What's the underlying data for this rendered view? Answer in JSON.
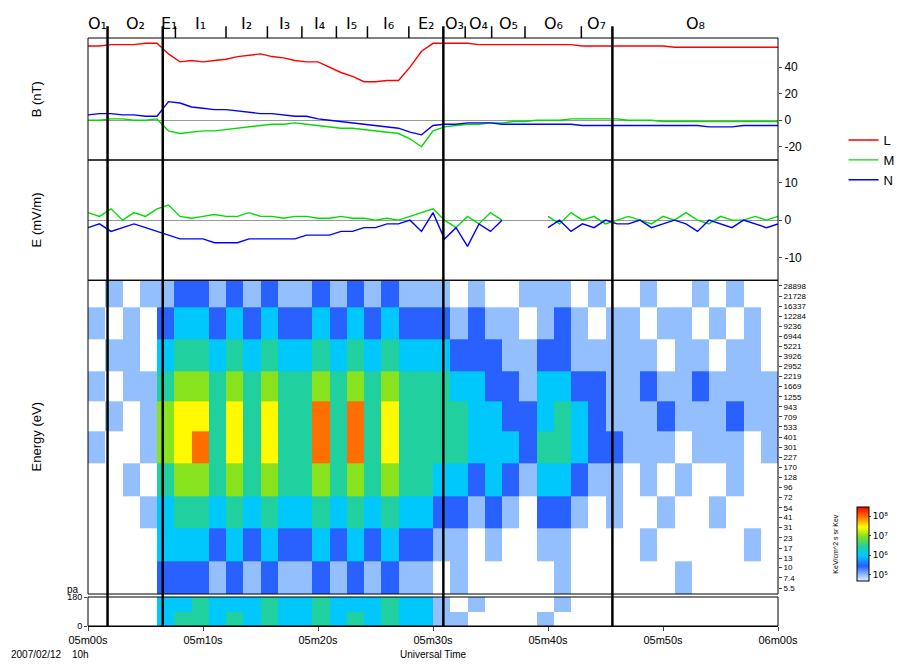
{
  "chart_data": [
    {
      "type": "line",
      "y_label": "B (nT)",
      "ylim": [
        -30,
        62
      ],
      "yticks": [
        -20,
        0,
        20,
        40
      ],
      "legend": "right",
      "series": [
        {
          "name": "L",
          "color": "#ff0000",
          "values": [
            56,
            56,
            57,
            57,
            57,
            58,
            58,
            50,
            44,
            45,
            44,
            45,
            46,
            48,
            49,
            50,
            48,
            47,
            45,
            44,
            44,
            40,
            36,
            33,
            29,
            29,
            30,
            30,
            40,
            52,
            58,
            58,
            58,
            58,
            57,
            57,
            57,
            57,
            57,
            57,
            57,
            57,
            57,
            56,
            56,
            56,
            56,
            56,
            56,
            56,
            56,
            55,
            55,
            55,
            55,
            55,
            55,
            55,
            55,
            55,
            55
          ]
        },
        {
          "name": "M",
          "color": "#00dd00",
          "values": [
            0,
            0,
            1,
            1,
            0,
            0,
            1,
            -8,
            -10,
            -9,
            -8,
            -8,
            -7,
            -6,
            -5,
            -4,
            -3,
            -3,
            -2,
            -3,
            -4,
            -5,
            -6,
            -6,
            -7,
            -8,
            -9,
            -10,
            -14,
            -20,
            -8,
            -5,
            -4,
            -3,
            -3,
            -2,
            -2,
            -1,
            -1,
            0,
            0,
            0,
            1,
            1,
            1,
            1,
            1,
            0,
            0,
            0,
            -1,
            -1,
            -1,
            -1,
            -1,
            -1,
            -1,
            -1,
            -1,
            -1,
            -1
          ]
        },
        {
          "name": "N",
          "color": "#0000ff",
          "values": [
            4,
            5,
            5,
            4,
            4,
            3,
            3,
            14,
            13,
            10,
            9,
            8,
            8,
            7,
            6,
            5,
            5,
            4,
            3,
            3,
            1,
            0,
            -1,
            -2,
            -3,
            -4,
            -5,
            -6,
            -9,
            -11,
            -4,
            -3,
            -3,
            -2,
            -2,
            -2,
            -3,
            -3,
            -3,
            -3,
            -3,
            -3,
            -3,
            -4,
            -4,
            -4,
            -4,
            -4,
            -4,
            -4,
            -4,
            -4,
            -4,
            -4,
            -5,
            -5,
            -5,
            -4,
            -4,
            -4,
            -4
          ]
        }
      ]
    },
    {
      "type": "line",
      "y_label": "E (mV/m)",
      "ylim": [
        -16,
        16
      ],
      "yticks": [
        -10,
        0,
        10
      ],
      "series": [
        {
          "name": "M",
          "color": "#00dd00",
          "values": [
            2,
            1,
            3,
            0,
            2,
            1,
            3,
            4,
            1,
            0.5,
            1,
            1.5,
            1,
            1,
            2,
            1,
            1,
            0.5,
            1,
            1,
            0.5,
            0.5,
            1,
            0.5,
            0.5,
            0,
            0.5,
            0,
            1,
            2,
            3,
            0,
            -2,
            1,
            -1,
            2,
            0,
            null,
            null,
            null,
            1,
            -1,
            2,
            0,
            1,
            -1,
            0,
            1,
            0,
            -1,
            1,
            0,
            2,
            0,
            -1,
            1,
            0,
            0,
            1,
            0,
            1
          ]
        },
        {
          "name": "N",
          "color": "#0000ff",
          "values": [
            -2,
            -1,
            -3,
            -2,
            -1,
            -2,
            -3,
            -4,
            -5,
            -5,
            -5,
            -6,
            -6,
            -6,
            -5,
            -5,
            -5,
            -5,
            -5,
            -4,
            -4,
            -4,
            -3,
            -3,
            -2,
            -2,
            -1,
            -1,
            0,
            -3,
            2,
            -5,
            -2,
            -7,
            -1,
            -3,
            0,
            null,
            null,
            null,
            -2,
            0,
            -3,
            -1,
            -2,
            0,
            -1,
            -1,
            0,
            -2,
            -1,
            0,
            -1,
            -3,
            0,
            -1,
            -2,
            0,
            -1,
            -2,
            -1
          ]
        }
      ]
    },
    {
      "type": "heatmap",
      "y_label": "Energy (eV)",
      "log": "y",
      "ylim": [
        4.7,
        34000
      ],
      "yticks": [
        5.5,
        7.4,
        10,
        13,
        17,
        23,
        31,
        41,
        54,
        72,
        96,
        128,
        170,
        227,
        301,
        401,
        533,
        709,
        943,
        1255,
        1669,
        2219,
        2952,
        3926,
        5221,
        6944,
        9236,
        12284,
        16337,
        21728,
        28898
      ],
      "y_edges": [
        4.7,
        12,
        30,
        75,
        190,
        470,
        1100,
        2600,
        6400,
        16000,
        34000
      ],
      "cells": [
        [
          null,
          null,
          null,
          null,
          300000.0,
          300000.0,
          300000.0,
          100000.0,
          300000.0,
          100000.0,
          300000.0,
          100000.0,
          100000.0,
          300000.0,
          100000.0,
          300000.0,
          100000.0,
          300000.0,
          100000.0,
          100000.0,
          null,
          100000.0,
          null,
          null,
          null,
          null,
          null,
          100000.0,
          null,
          null,
          null,
          null,
          null,
          null,
          100000.0,
          null,
          null,
          null,
          null,
          null
        ],
        [
          null,
          null,
          null,
          null,
          1000000.0,
          1000000.0,
          1000000.0,
          300000.0,
          1000000.0,
          300000.0,
          1000000.0,
          300000.0,
          300000.0,
          1000000.0,
          300000.0,
          1000000.0,
          300000.0,
          1000000.0,
          300000.0,
          300000.0,
          100000.0,
          100000.0,
          null,
          100000.0,
          null,
          null,
          100000.0,
          100000.0,
          null,
          null,
          null,
          null,
          100000.0,
          null,
          null,
          null,
          null,
          null,
          100000.0,
          null
        ],
        [
          null,
          null,
          null,
          100000.0,
          1000000.0,
          3000000.0,
          3000000.0,
          1000000.0,
          3000000.0,
          1000000.0,
          3000000.0,
          1000000.0,
          1000000.0,
          3000000.0,
          1000000.0,
          3000000.0,
          1000000.0,
          3000000.0,
          1000000.0,
          1000000.0,
          300000.0,
          300000.0,
          100000.0,
          300000.0,
          100000.0,
          null,
          300000.0,
          300000.0,
          100000.0,
          null,
          100000.0,
          null,
          null,
          100000.0,
          null,
          null,
          100000.0,
          null,
          null,
          null
        ],
        [
          null,
          null,
          100000.0,
          null,
          3000000.0,
          10000000.0,
          10000000.0,
          3000000.0,
          10000000.0,
          3000000.0,
          10000000.0,
          3000000.0,
          3000000.0,
          10000000.0,
          3000000.0,
          10000000.0,
          3000000.0,
          10000000.0,
          3000000.0,
          3000000.0,
          1000000.0,
          1000000.0,
          300000.0,
          1000000.0,
          300000.0,
          100000.0,
          1000000.0,
          1000000.0,
          300000.0,
          100000.0,
          100000.0,
          null,
          100000.0,
          null,
          100000.0,
          null,
          null,
          100000.0,
          null,
          null
        ],
        [
          100000.0,
          null,
          null,
          100000.0,
          10000000.0,
          30000000.0,
          100000000.0,
          3000000.0,
          30000000.0,
          3000000.0,
          30000000.0,
          3000000.0,
          3000000.0,
          100000000.0,
          3000000.0,
          100000000.0,
          3000000.0,
          30000000.0,
          3000000.0,
          3000000.0,
          3000000.0,
          3000000.0,
          1000000.0,
          1000000.0,
          1000000.0,
          300000.0,
          3000000.0,
          3000000.0,
          1000000.0,
          300000.0,
          300000.0,
          100000.0,
          100000.0,
          100000.0,
          null,
          100000.0,
          100000.0,
          100000.0,
          null,
          100000.0
        ],
        [
          null,
          100000.0,
          null,
          100000.0,
          10000000.0,
          30000000.0,
          30000000.0,
          3000000.0,
          30000000.0,
          3000000.0,
          30000000.0,
          3000000.0,
          3000000.0,
          100000000.0,
          3000000.0,
          100000000.0,
          3000000.0,
          30000000.0,
          3000000.0,
          3000000.0,
          3000000.0,
          3000000.0,
          1000000.0,
          1000000.0,
          300000.0,
          300000.0,
          1000000.0,
          3000000.0,
          1000000.0,
          300000.0,
          100000.0,
          100000.0,
          100000.0,
          300000.0,
          100000.0,
          100000.0,
          100000.0,
          300000.0,
          100000.0,
          100000.0
        ],
        [
          100000.0,
          null,
          100000.0,
          100000.0,
          3000000.0,
          10000000.0,
          10000000.0,
          3000000.0,
          10000000.0,
          3000000.0,
          10000000.0,
          3000000.0,
          3000000.0,
          10000000.0,
          3000000.0,
          10000000.0,
          3000000.0,
          10000000.0,
          3000000.0,
          3000000.0,
          3000000.0,
          1000000.0,
          1000000.0,
          300000.0,
          300000.0,
          100000.0,
          1000000.0,
          1000000.0,
          300000.0,
          300000.0,
          100000.0,
          100000.0,
          300000.0,
          100000.0,
          100000.0,
          300000.0,
          100000.0,
          100000.0,
          100000.0,
          100000.0
        ],
        [
          null,
          100000.0,
          100000.0,
          null,
          1000000.0,
          3000000.0,
          3000000.0,
          1000000.0,
          3000000.0,
          1000000.0,
          3000000.0,
          1000000.0,
          1000000.0,
          3000000.0,
          1000000.0,
          3000000.0,
          1000000.0,
          3000000.0,
          1000000.0,
          1000000.0,
          1000000.0,
          300000.0,
          300000.0,
          300000.0,
          100000.0,
          100000.0,
          300000.0,
          300000.0,
          100000.0,
          100000.0,
          100000.0,
          100000.0,
          100000.0,
          null,
          100000.0,
          100000.0,
          null,
          100000.0,
          100000.0,
          null
        ],
        [
          100000.0,
          null,
          100000.0,
          null,
          300000.0,
          1000000.0,
          1000000.0,
          300000.0,
          1000000.0,
          300000.0,
          1000000.0,
          300000.0,
          300000.0,
          1000000.0,
          300000.0,
          1000000.0,
          300000.0,
          1000000.0,
          300000.0,
          300000.0,
          300000.0,
          100000.0,
          300000.0,
          100000.0,
          100000.0,
          null,
          100000.0,
          300000.0,
          100000.0,
          null,
          100000.0,
          100000.0,
          null,
          100000.0,
          100000.0,
          null,
          100000.0,
          null,
          100000.0,
          null
        ],
        [
          null,
          100000.0,
          null,
          100000.0,
          100000.0,
          300000.0,
          300000.0,
          100000.0,
          300000.0,
          100000.0,
          300000.0,
          100000.0,
          100000.0,
          300000.0,
          100000.0,
          300000.0,
          100000.0,
          300000.0,
          100000.0,
          100000.0,
          100000.0,
          null,
          100000.0,
          null,
          null,
          100000.0,
          100000.0,
          100000.0,
          null,
          100000.0,
          null,
          null,
          100000.0,
          null,
          null,
          100000.0,
          null,
          100000.0,
          null,
          null
        ]
      ],
      "colorbar": {
        "title": "KeV/cm^2 s sr Kev",
        "log": true,
        "zlim": [
          50000,
          300000000
        ],
        "zticks": [
          {
            "value": 100000,
            "label": "10⁵"
          },
          {
            "value": 1000000,
            "label": "10⁶"
          },
          {
            "value": 10000000,
            "label": "10⁷"
          },
          {
            "value": 100000000,
            "label": "10⁸"
          }
        ]
      }
    },
    {
      "type": "heatmap",
      "y_label": "pa",
      "ylim": [
        0,
        180
      ],
      "yticks": [
        0,
        180
      ],
      "y_edges": [
        0,
        90,
        180
      ],
      "cells": [
        [
          null,
          null,
          null,
          null,
          1000000.0,
          3000000.0,
          3000000.0,
          1000000.0,
          3000000.0,
          1000000.0,
          3000000.0,
          1000000.0,
          1000000.0,
          3000000.0,
          1000000.0,
          3000000.0,
          1000000.0,
          3000000.0,
          1000000.0,
          1000000.0,
          100000.0,
          100000.0,
          null,
          null,
          null,
          null,
          100000.0,
          null,
          null,
          null,
          null,
          null,
          null,
          null,
          null,
          null,
          null,
          null,
          null,
          null
        ],
        [
          null,
          null,
          null,
          null,
          1000000.0,
          1000000.0,
          3000000.0,
          1000000.0,
          1000000.0,
          1000000.0,
          3000000.0,
          1000000.0,
          1000000.0,
          3000000.0,
          1000000.0,
          1000000.0,
          1000000.0,
          3000000.0,
          1000000.0,
          1000000.0,
          100000.0,
          null,
          100000.0,
          null,
          null,
          null,
          null,
          100000.0,
          null,
          null,
          null,
          null,
          null,
          null,
          null,
          null,
          null,
          null,
          null,
          null
        ]
      ]
    }
  ],
  "x": [
    0,
    1,
    2,
    3,
    4,
    5,
    6,
    7,
    8,
    9,
    10,
    11,
    12,
    13,
    14,
    15,
    16,
    17,
    18,
    19,
    20,
    21,
    22,
    23,
    24,
    25,
    26,
    27,
    28,
    29,
    30,
    31,
    32,
    33,
    34,
    35,
    36,
    37,
    38,
    39,
    40,
    41,
    42,
    43,
    44,
    45,
    46,
    47,
    48,
    49,
    50,
    51,
    52,
    53,
    54,
    55,
    56,
    57,
    58,
    59,
    60
  ],
  "x_edges": [
    0,
    1.5,
    3,
    4.5,
    6,
    7.5,
    9,
    10.5,
    12,
    13.5,
    15,
    16.5,
    18,
    19.5,
    21,
    22.5,
    24,
    25.5,
    27,
    28.5,
    30,
    31.5,
    33,
    34.5,
    36,
    37.5,
    39,
    40.5,
    42,
    43.5,
    45,
    46.5,
    48,
    49.5,
    51,
    52.5,
    54,
    55.5,
    57,
    58.5,
    60
  ],
  "xlim": [
    0,
    60
  ],
  "xticks": [
    {
      "value": 0,
      "label": "05m00s"
    },
    {
      "value": 10,
      "label": "05m10s"
    },
    {
      "value": 20,
      "label": "05m20s"
    },
    {
      "value": 30,
      "label": "05m30s"
    },
    {
      "value": 40,
      "label": "05m40s"
    },
    {
      "value": 50,
      "label": "05m50s"
    },
    {
      "value": 60,
      "label": "06m00s"
    }
  ],
  "x_label": "Universal Time",
  "date": "2007/02/12",
  "hour": "10h",
  "boundaries": [
    1.7,
    6.5,
    30.9,
    45.6
  ],
  "intervals": [
    {
      "label": "O₁",
      "start": 0,
      "end": 1.7
    },
    {
      "label": "O₂",
      "start": 1.7,
      "end": 6.5
    },
    {
      "label": "E₁",
      "start": 6.5,
      "end": 7.6
    },
    {
      "label": "I₁",
      "start": 7.6,
      "end": 12.0
    },
    {
      "label": "I₂",
      "start": 12.0,
      "end": 15.6
    },
    {
      "label": "I₃",
      "start": 15.6,
      "end": 18.6
    },
    {
      "label": "I₄",
      "start": 18.6,
      "end": 21.6
    },
    {
      "label": "I₅",
      "start": 21.6,
      "end": 24.3
    },
    {
      "label": "I₆",
      "start": 24.3,
      "end": 27.9
    },
    {
      "label": "E₂",
      "start": 27.9,
      "end": 30.9
    },
    {
      "label": "O₃",
      "start": 30.9,
      "end": 32.8
    },
    {
      "label": "O₄",
      "start": 32.8,
      "end": 35.1
    },
    {
      "label": "O₅",
      "start": 35.1,
      "end": 38.0
    },
    {
      "label": "O₆",
      "start": 38.0,
      "end": 42.9
    },
    {
      "label": "O₇",
      "start": 42.9,
      "end": 45.6
    },
    {
      "label": "O₈",
      "start": 45.6,
      "end": 60
    }
  ]
}
